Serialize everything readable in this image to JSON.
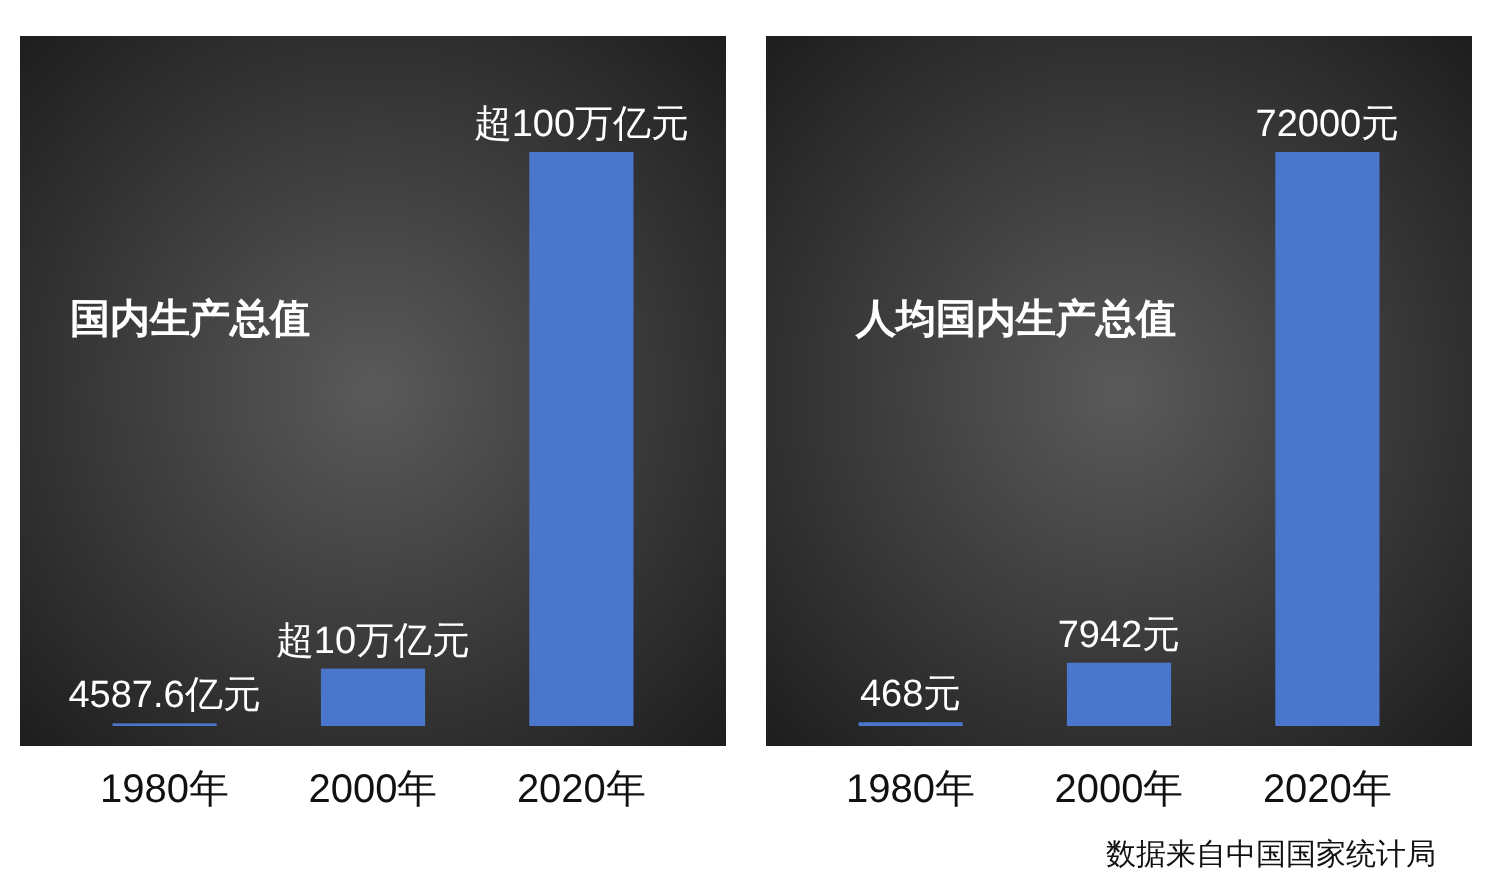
{
  "chart_data": [
    {
      "type": "bar",
      "title": "国内生产总值",
      "categories": [
        "1980年",
        "2000年",
        "2020年"
      ],
      "values": [
        4587.6,
        100000,
        1000000
      ],
      "value_labels": [
        "4587.6亿元",
        "超10万亿元",
        "超100万亿元"
      ],
      "color": "#4a76cc"
    },
    {
      "type": "bar",
      "title": "人均国内生产总值",
      "categories": [
        "1980年",
        "2000年",
        "2020年"
      ],
      "values": [
        468,
        7942,
        72000
      ],
      "value_labels": [
        "468元",
        "7942元",
        "72000元"
      ],
      "color": "#4a76cc",
      "annotations": [
        "数据来自中国国家统计局"
      ]
    }
  ]
}
